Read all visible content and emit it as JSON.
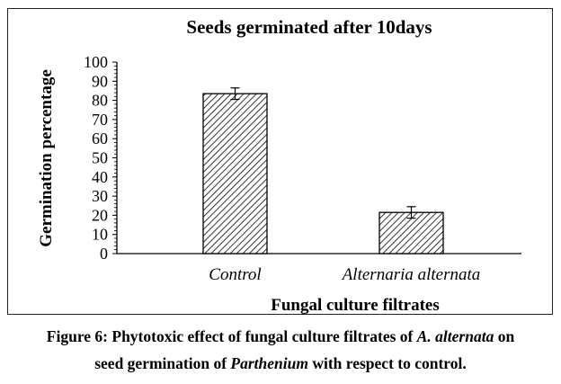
{
  "chart_data": {
    "type": "bar",
    "title": "Seeds germinated after 10days",
    "xlabel": "Fungal culture filtrates",
    "ylabel": "Germination percentage",
    "categories": [
      "Control",
      "Alternaria alternata"
    ],
    "values": [
      83.5,
      21.5
    ],
    "error": [
      3,
      3
    ],
    "ylim": [
      0,
      100
    ],
    "yticks": [
      "0",
      "10",
      "20",
      "30",
      "40",
      "50",
      "60",
      "70",
      "80",
      "90",
      "100"
    ],
    "grid": false,
    "fill_pattern": "diagonal-hatch"
  },
  "caption": {
    "part1": "Figure 6: Phytotoxic effect of fungal culture filtrates of ",
    "italic1": "A. alternata",
    "part2": " on",
    "part3": "seed germination of ",
    "italic2": "Parthenium",
    "part4": " with respect to control."
  }
}
